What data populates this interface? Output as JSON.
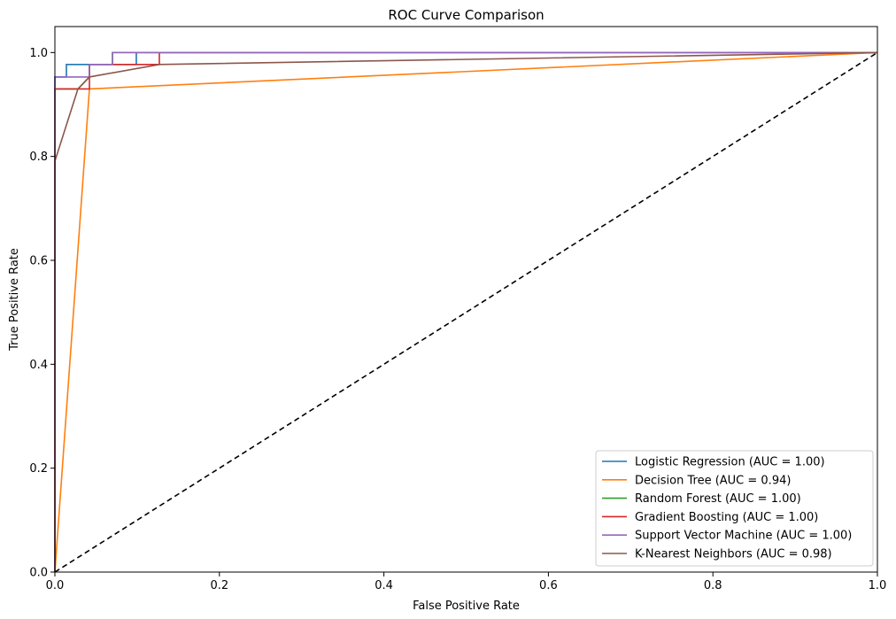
{
  "chart_data": {
    "type": "line",
    "title": "ROC Curve Comparison",
    "xlabel": "False Positive Rate",
    "ylabel": "True Positive Rate",
    "xlim": [
      0,
      1
    ],
    "ylim": [
      0,
      1.05
    ],
    "xticks": [
      0,
      0.2,
      0.4,
      0.6,
      0.8,
      1
    ],
    "xtick_labels": [
      "0.0",
      "0.2",
      "0.4",
      "0.6",
      "0.8",
      "1.0"
    ],
    "yticks": [
      0,
      0.2,
      0.4,
      0.6,
      0.8,
      1
    ],
    "ytick_labels": [
      "0.0",
      "0.2",
      "0.4",
      "0.6",
      "0.8",
      "1.0"
    ],
    "grid": false,
    "legend_position": "lower-right",
    "series": [
      {
        "name": "Logistic Regression (AUC = 1.00)",
        "color": "#1f77b4",
        "x": [
          0,
          0,
          0.014,
          0.014,
          0.042,
          0.042,
          0.099,
          0.099,
          1.0
        ],
        "y": [
          0,
          0.953,
          0.953,
          0.977,
          0.977,
          0.977,
          0.977,
          1.0,
          1.0
        ]
      },
      {
        "name": "Decision Tree (AUC = 0.94)",
        "color": "#ff7f0e",
        "x": [
          0,
          0.042,
          1.0
        ],
        "y": [
          0,
          0.93,
          1.0
        ]
      },
      {
        "name": "Random Forest (AUC = 1.00)",
        "color": "#2ca02c",
        "x": [
          0,
          0,
          0.028,
          0.042,
          0.042,
          0.07,
          0.07,
          1.0
        ],
        "y": [
          0,
          0.93,
          0.93,
          0.953,
          0.977,
          0.977,
          1.0,
          1.0
        ]
      },
      {
        "name": "Gradient Boosting (AUC = 1.00)",
        "color": "#d62728",
        "x": [
          0,
          0,
          0.028,
          0.042,
          0.042,
          0.127,
          0.127,
          1.0
        ],
        "y": [
          0,
          0.93,
          0.93,
          0.93,
          0.977,
          0.977,
          1.0,
          1.0
        ]
      },
      {
        "name": "Support Vector Machine (AUC = 1.00)",
        "color": "#9467bd",
        "x": [
          0,
          0,
          0.042,
          0.042,
          0.07,
          0.07,
          1.0
        ],
        "y": [
          0,
          0.953,
          0.953,
          0.977,
          0.977,
          1.0,
          1.0
        ]
      },
      {
        "name": "K-Nearest Neighbors (AUC = 0.98)",
        "color": "#8c564b",
        "x": [
          0,
          0,
          0.028,
          0.042,
          0.127,
          1.0
        ],
        "y": [
          0,
          0.791,
          0.93,
          0.953,
          0.977,
          1.0
        ]
      }
    ],
    "reference_line": {
      "x": [
        0,
        1
      ],
      "y": [
        0,
        1
      ],
      "color": "#000000",
      "style": "dashed"
    }
  }
}
